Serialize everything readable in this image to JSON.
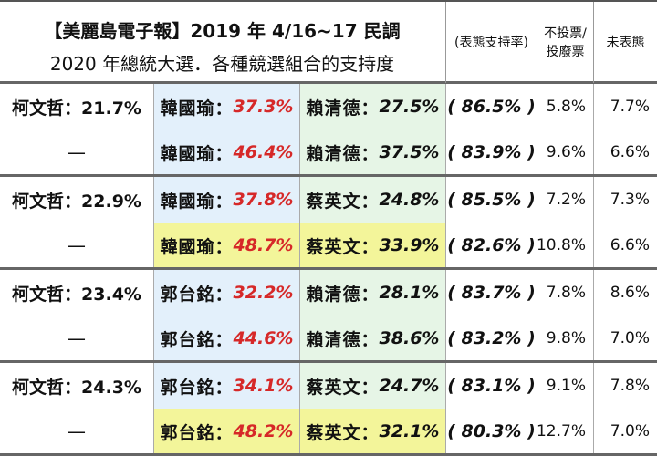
{
  "header": {
    "title_line1": "【美麗島電子報】2019 年 4/16~17 民調",
    "title_line2": "2020 年總統大選．各種競選組合的支持度",
    "col_support": "(表態支持率)",
    "col_abstain": "不投票/\n投廢票",
    "col_undecided": "未表態"
  },
  "rows": [
    {
      "ko": "柯文哲：21.7%",
      "c1_name": "韓國瑜：",
      "c1_val": "37.3%",
      "c2_name": "賴清德：",
      "c2_val": "27.5%",
      "support": "( 86.5% )",
      "abstain": "5.8%",
      "undecided": "7.7%"
    },
    {
      "ko": "—",
      "c1_name": "韓國瑜：",
      "c1_val": "46.4%",
      "c2_name": "賴清德：",
      "c2_val": "37.5%",
      "support": "( 83.9% )",
      "abstain": "9.6%",
      "undecided": "6.6%"
    },
    {
      "ko": "柯文哲：22.9%",
      "c1_name": "韓國瑜：",
      "c1_val": "37.8%",
      "c2_name": "蔡英文：",
      "c2_val": "24.8%",
      "support": "( 85.5% )",
      "abstain": "7.2%",
      "undecided": "7.3%"
    },
    {
      "ko": "—",
      "c1_name": "韓國瑜：",
      "c1_val": "48.7%",
      "c2_name": "蔡英文：",
      "c2_val": "33.9%",
      "support": "( 82.6% )",
      "abstain": "10.8%",
      "undecided": "6.6%"
    },
    {
      "ko": "柯文哲：23.4%",
      "c1_name": "郭台銘：",
      "c1_val": "32.2%",
      "c2_name": "賴清德：",
      "c2_val": "28.1%",
      "support": "( 83.7% )",
      "abstain": "7.8%",
      "undecided": "8.6%"
    },
    {
      "ko": "—",
      "c1_name": "郭台銘：",
      "c1_val": "44.6%",
      "c2_name": "賴清德：",
      "c2_val": "38.6%",
      "support": "( 83.2% )",
      "abstain": "9.8%",
      "undecided": "7.0%"
    },
    {
      "ko": "柯文哲：24.3%",
      "c1_name": "郭台銘：",
      "c1_val": "34.1%",
      "c2_name": "蔡英文：",
      "c2_val": "24.7%",
      "support": "( 83.1% )",
      "abstain": "9.1%",
      "undecided": "7.8%"
    },
    {
      "ko": "—",
      "c1_name": "郭台銘：",
      "c1_val": "48.2%",
      "c2_name": "蔡英文：",
      "c2_val": "32.1%",
      "support": "( 80.3% )",
      "abstain": "12.7%",
      "undecided": "7.0%"
    }
  ],
  "highlight_color": "#f3f59a",
  "accent_red": "#d62828"
}
